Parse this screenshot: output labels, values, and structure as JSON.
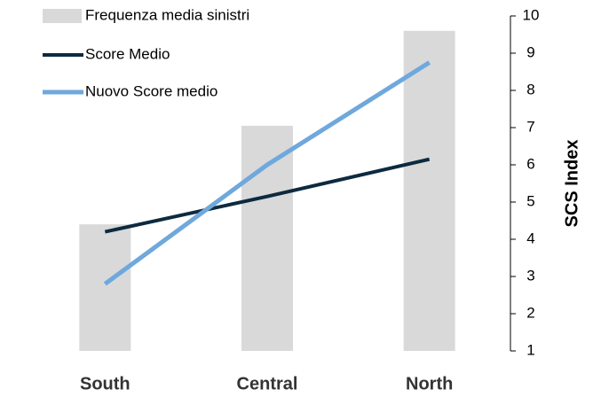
{
  "chart_data": {
    "type": "bar_line",
    "categories": [
      "South",
      "Central",
      "North"
    ],
    "series": [
      {
        "name": "Frequenza media sinistri",
        "type": "bar",
        "color": "#d9d9d9",
        "values": [
          4.4,
          7.05,
          9.6
        ]
      },
      {
        "name": "Score Medio",
        "type": "line",
        "color": "#0d2a3f",
        "values": [
          4.2,
          5.15,
          6.15
        ]
      },
      {
        "name": "Nuovo Score medio",
        "type": "line",
        "color": "#6fa8dc",
        "values": [
          2.8,
          6.0,
          8.75
        ]
      }
    ],
    "ylabel": "SCS Index",
    "ylim": [
      1,
      10
    ],
    "yticks": [
      1,
      2,
      3,
      4,
      5,
      6,
      7,
      8,
      9,
      10
    ]
  }
}
